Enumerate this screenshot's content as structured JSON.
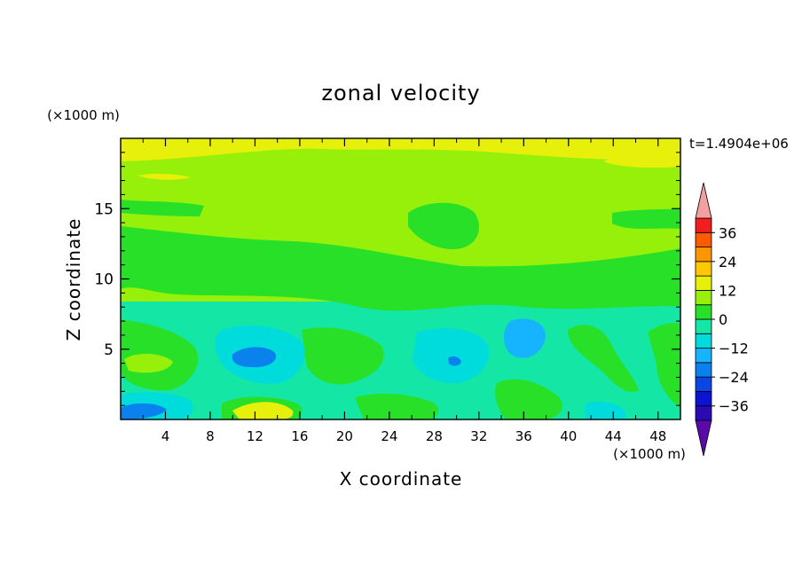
{
  "chart_data": {
    "type": "heatmap",
    "title": "zonal velocity",
    "xlabel": "X coordinate",
    "ylabel": "Z coordinate",
    "x_unit": "(×1000 m)",
    "y_unit": "(×1000 m)",
    "time_label": "t=1.4904e+06",
    "xlim": [
      0,
      50
    ],
    "ylim": [
      0,
      20
    ],
    "x_ticks": [
      "4",
      "8",
      "12",
      "16",
      "20",
      "24",
      "28",
      "32",
      "36",
      "40",
      "44",
      "48"
    ],
    "y_ticks": [
      "5",
      "10",
      "15"
    ],
    "colorbar": {
      "levels": [
        -42,
        -36,
        -30,
        -24,
        -18,
        -12,
        -6,
        0,
        6,
        12,
        18,
        24,
        30,
        36,
        42
      ],
      "colors": [
        "#5b0aa8",
        "#2b0ab4",
        "#0a14d2",
        "#0a46e6",
        "#0a82ee",
        "#16b4ff",
        "#00dcdc",
        "#14e6a6",
        "#28e028",
        "#96f00a",
        "#e6f00a",
        "#ffc800",
        "#ff9600",
        "#ff5a00",
        "#f01e1e",
        "#f5a0a0"
      ],
      "ticks": [
        "36",
        "24",
        "12",
        "0",
        "−12",
        "−24",
        "−36"
      ],
      "extend": "both"
    }
  }
}
